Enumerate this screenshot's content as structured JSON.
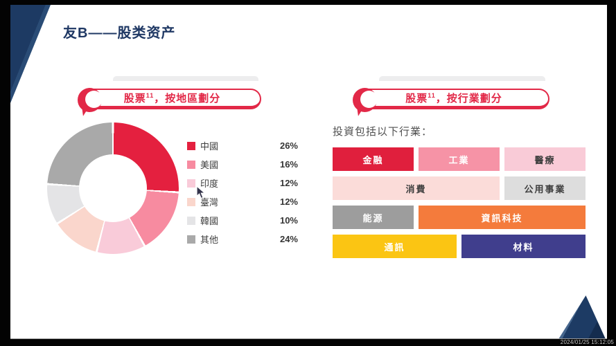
{
  "window": {
    "timestamp": "2024/01/25 15:12:05"
  },
  "slide": {
    "title": "友B——股类资产",
    "left_panel": {
      "header": {
        "prefix": "股票",
        "sup": "11",
        "suffix": "，按地區劃分"
      }
    },
    "right_panel": {
      "header": {
        "prefix": "股票",
        "sup": "11",
        "suffix": "，按行業劃分"
      },
      "subtitle": "投資包括以下行業：",
      "industries": [
        {
          "label": "金融",
          "bg": "#E01F3D",
          "fg": "#FFFFFF",
          "span": 2
        },
        {
          "label": "工業",
          "bg": "#F693A6",
          "fg": "#FFFFFF",
          "span": 2
        },
        {
          "label": "醫療",
          "bg": "#F9CBD7",
          "fg": "#3F3F3F",
          "span": 2
        },
        {
          "label": "消費",
          "bg": "#FBDCD9",
          "fg": "#3F3F3F",
          "span": 4
        },
        {
          "label": "公用事業",
          "bg": "#DDDDDD",
          "fg": "#3F3F3F",
          "span": 2
        },
        {
          "label": "能源",
          "bg": "#9D9D9D",
          "fg": "#FFFFFF",
          "span": 2
        },
        {
          "label": "資訊科技",
          "bg": "#F47B3C",
          "fg": "#FFFFFF",
          "span": 4
        },
        {
          "label": "通訊",
          "bg": "#FBC513",
          "fg": "#FFFFFF",
          "span": 3
        },
        {
          "label": "材料",
          "bg": "#403E8D",
          "fg": "#FFFFFF",
          "span": 3
        }
      ]
    }
  },
  "chart_data": {
    "type": "pie",
    "title": "股票11，按地區劃分",
    "labels": [
      "中國",
      "美國",
      "印度",
      "臺灣",
      "韓國",
      "其他"
    ],
    "values": [
      26,
      16,
      12,
      12,
      10,
      24
    ],
    "colors": [
      "#E4203F",
      "#F78BA0",
      "#F9CBD9",
      "#FAD6CC",
      "#E4E4E6",
      "#A9A9A9"
    ],
    "donut_hole_ratio": 0.52,
    "start_angle_deg": 0,
    "direction": "clockwise",
    "legend_position": "right",
    "value_suffix": "%"
  },
  "colors": {
    "accent_red": "#E22847",
    "title_navy": "#1F3864"
  }
}
